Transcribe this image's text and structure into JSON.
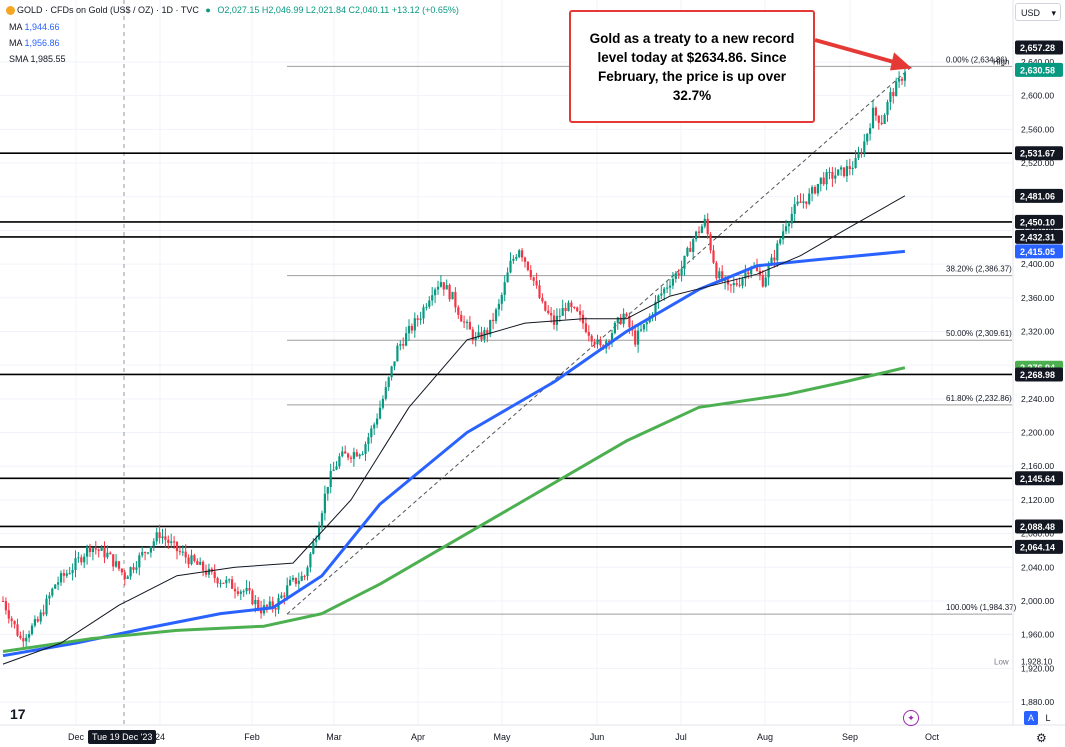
{
  "header": {
    "symbol_title": "GOLD · CFDs on Gold (US$ / OZ) · 1D · TVC",
    "ohlc": "O2,027.15 H2,046.99 L2,021.84 C2,040.11 +13.12 (+0.65%)",
    "indicators": [
      {
        "name": "MA",
        "value": "1,944.66",
        "color": "#2962ff"
      },
      {
        "name": "MA",
        "value": "1,956.86",
        "color": "#2962ff"
      },
      {
        "name": "SMA",
        "value": "1,985.55",
        "color": "#131722"
      }
    ]
  },
  "currency_button": "USD",
  "annotation": "Gold as a treaty to a new record level today at $2634.86. Since February, the price is up over 32.7%",
  "date_tooltip": "Tue 19 Dec '23",
  "bottom_buttons": {
    "auto": "A",
    "log": "L"
  },
  "colors": {
    "up": "#089981",
    "down": "#f23645",
    "ma_fast": "#2962ff",
    "ma_slow": "#4caf50",
    "sma": "#131722",
    "arrow": "#e53935"
  },
  "chart_data": {
    "type": "candlestick",
    "x_tick_labels": [
      "Dec",
      "24",
      "Feb",
      "Mar",
      "Apr",
      "May",
      "Jun",
      "Jul",
      "Aug",
      "Sep",
      "Oct"
    ],
    "y_tick_labels": [
      "1,880.00",
      "1,920.00",
      "1,960.00",
      "2,000.00",
      "2,040.00",
      "2,080.00",
      "2,120.00",
      "2,160.00",
      "2,200.00",
      "2,240.00",
      "2,280.00",
      "2,320.00",
      "2,360.00",
      "2,400.00",
      "2,440.00",
      "2,480.00",
      "2,520.00",
      "2,560.00",
      "2,600.00",
      "2,640.00"
    ],
    "ylim": [
      1870,
      2680
    ],
    "horizontal_levels": [
      2145.64,
      2088.48,
      2064.14,
      2268.98,
      2432.31,
      2450.1,
      2531.67
    ],
    "price_labels": [
      {
        "text": "2,657.28",
        "value": 2657.28,
        "color": "#131722"
      },
      {
        "text": "2,630.58",
        "value": 2630.58,
        "color": "#089981"
      },
      {
        "text": "2,531.67",
        "value": 2531.67,
        "color": "#131722"
      },
      {
        "text": "2,481.06",
        "value": 2481.06,
        "color": "#131722"
      },
      {
        "text": "2,450.10",
        "value": 2450.1,
        "color": "#131722"
      },
      {
        "text": "2,432.31",
        "value": 2432.31,
        "color": "#131722"
      },
      {
        "text": "2,415.05",
        "value": 2415.05,
        "color": "#2962ff"
      },
      {
        "text": "2,276.94",
        "value": 2276.94,
        "color": "#4caf50"
      },
      {
        "text": "2,268.98",
        "value": 2268.98,
        "color": "#131722"
      },
      {
        "text": "2,145.64",
        "value": 2145.64,
        "color": "#131722"
      },
      {
        "text": "2,088.48",
        "value": 2088.48,
        "color": "#131722"
      },
      {
        "text": "2,064.14",
        "value": 2064.14,
        "color": "#131722"
      }
    ],
    "fib_levels": [
      {
        "label": "0.00% (2,634.86)",
        "value": 2634.86
      },
      {
        "label": "38.20% (2,386.37)",
        "value": 2386.37
      },
      {
        "label": "50.00% (2,309.61)",
        "value": 2309.61
      },
      {
        "label": "61.80% (2,232.86)",
        "value": 2232.86
      },
      {
        "label": "100.00% (1,984.37)",
        "value": 1984.37
      }
    ],
    "high_label": "High",
    "low_label": "Low",
    "low_value": "1,928.10",
    "close_key": [
      [
        0,
        2000
      ],
      [
        6,
        1955
      ],
      [
        12,
        1975
      ],
      [
        18,
        2020
      ],
      [
        24,
        2040
      ],
      [
        30,
        2065
      ],
      [
        36,
        2055
      ],
      [
        42,
        2030
      ],
      [
        48,
        2055
      ],
      [
        54,
        2080
      ],
      [
        60,
        2060
      ],
      [
        66,
        2045
      ],
      [
        72,
        2030
      ],
      [
        78,
        2020
      ],
      [
        84,
        2010
      ],
      [
        89,
        1990
      ],
      [
        94,
        1995
      ],
      [
        99,
        2020
      ],
      [
        104,
        2030
      ],
      [
        108,
        2080
      ],
      [
        112,
        2140
      ],
      [
        116,
        2170
      ],
      [
        120,
        2175
      ],
      [
        124,
        2180
      ],
      [
        128,
        2210
      ],
      [
        132,
        2250
      ],
      [
        136,
        2300
      ],
      [
        140,
        2320
      ],
      [
        144,
        2340
      ],
      [
        148,
        2370
      ],
      [
        151,
        2380
      ],
      [
        155,
        2360
      ],
      [
        159,
        2330
      ],
      [
        163,
        2310
      ],
      [
        167,
        2320
      ],
      [
        171,
        2350
      ],
      [
        175,
        2400
      ],
      [
        178,
        2420
      ],
      [
        182,
        2390
      ],
      [
        186,
        2350
      ],
      [
        190,
        2330
      ],
      [
        194,
        2350
      ],
      [
        198,
        2340
      ],
      [
        202,
        2320
      ],
      [
        206,
        2300
      ],
      [
        210,
        2320
      ],
      [
        214,
        2340
      ],
      [
        218,
        2310
      ],
      [
        222,
        2330
      ],
      [
        226,
        2360
      ],
      [
        230,
        2380
      ],
      [
        234,
        2395
      ],
      [
        238,
        2430
      ],
      [
        242,
        2450
      ],
      [
        246,
        2390
      ],
      [
        250,
        2370
      ],
      [
        254,
        2380
      ],
      [
        258,
        2400
      ],
      [
        262,
        2380
      ],
      [
        266,
        2410
      ],
      [
        270,
        2450
      ],
      [
        274,
        2470
      ],
      [
        278,
        2480
      ],
      [
        282,
        2500
      ],
      [
        286,
        2505
      ],
      [
        290,
        2510
      ],
      [
        294,
        2520
      ],
      [
        297,
        2545
      ],
      [
        300,
        2580
      ],
      [
        303,
        2570
      ],
      [
        306,
        2600
      ],
      [
        309,
        2615
      ],
      [
        311,
        2630.58
      ]
    ],
    "series": [
      {
        "name": "MA",
        "color": "#2962ff",
        "points": [
          [
            0,
            1935
          ],
          [
            25,
            1950
          ],
          [
            50,
            1968
          ],
          [
            75,
            1985
          ],
          [
            93,
            1992
          ],
          [
            110,
            2030
          ],
          [
            130,
            2115
          ],
          [
            160,
            2200
          ],
          [
            190,
            2260
          ],
          [
            215,
            2320
          ],
          [
            240,
            2370
          ],
          [
            260,
            2398
          ],
          [
            280,
            2405
          ],
          [
            311,
            2415.05
          ]
        ]
      },
      {
        "name": "MA",
        "color": "#4caf50",
        "points": [
          [
            0,
            1940
          ],
          [
            30,
            1955
          ],
          [
            60,
            1965
          ],
          [
            90,
            1970
          ],
          [
            110,
            1985
          ],
          [
            130,
            2020
          ],
          [
            160,
            2080
          ],
          [
            190,
            2140
          ],
          [
            215,
            2190
          ],
          [
            240,
            2230
          ],
          [
            270,
            2245
          ],
          [
            290,
            2260
          ],
          [
            311,
            2276.94
          ]
        ]
      },
      {
        "name": "SMA",
        "color": "#131722",
        "points": [
          [
            0,
            1925
          ],
          [
            20,
            1950
          ],
          [
            40,
            1995
          ],
          [
            60,
            2030
          ],
          [
            80,
            2040
          ],
          [
            100,
            2045
          ],
          [
            120,
            2120
          ],
          [
            140,
            2230
          ],
          [
            160,
            2310
          ],
          [
            180,
            2330
          ],
          [
            200,
            2335
          ],
          [
            215,
            2335
          ],
          [
            230,
            2362
          ],
          [
            245,
            2375
          ],
          [
            260,
            2388
          ],
          [
            275,
            2410
          ],
          [
            290,
            2440
          ],
          [
            311,
            2481.06
          ]
        ]
      }
    ]
  }
}
